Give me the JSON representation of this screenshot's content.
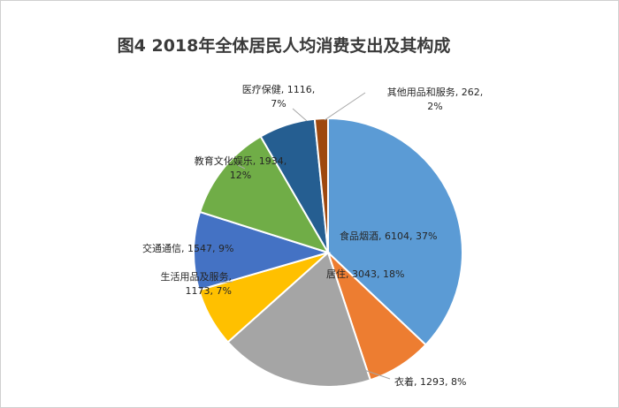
{
  "chart_data": {
    "type": "pie",
    "title": "图4  2018年全体居民人均消费支出及其构成",
    "slices": [
      {
        "name": "食品烟酒",
        "value": 6104,
        "percent": "37%",
        "color": "#5b9bd5",
        "label": "食品烟酒, 6104, 37%"
      },
      {
        "name": "衣着",
        "value": 1293,
        "percent": "8%",
        "color": "#ed7d31",
        "label": "衣着, 1293, 8%"
      },
      {
        "name": "居住",
        "value": 3043,
        "percent": "18%",
        "color": "#a5a5a5",
        "label": "居住, 3043, 18%"
      },
      {
        "name": "生活用品及服务",
        "value": 1173,
        "percent": "7%",
        "color": "#ffc000",
        "label_line1": "生活用品及服务,",
        "label_line2": "1173, 7%"
      },
      {
        "name": "交通通信",
        "value": 1547,
        "percent": "9%",
        "color": "#4472c4",
        "label": "交通通信, 1547, 9%"
      },
      {
        "name": "教育文化娱乐",
        "value": 1934,
        "percent": "12%",
        "color": "#70ad47",
        "label_line1": "教育文化娱乐, 1934,",
        "label_line2": "12%"
      },
      {
        "name": "医疗保健",
        "value": 1116,
        "percent": "7%",
        "color": "#255e91",
        "label_line1": "医疗保健, 1116,",
        "label_line2": "7%"
      },
      {
        "name": "其他用品和服务",
        "value": 262,
        "percent": "2%",
        "color": "#9e480e",
        "label_line1": "其他用品和服务, 262,",
        "label_line2": "2%"
      }
    ]
  }
}
